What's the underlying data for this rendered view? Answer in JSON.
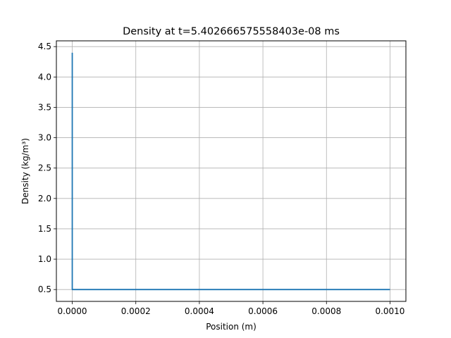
{
  "chart_data": {
    "type": "line",
    "title": "Density at t=5.402666575558403e-08 ms",
    "xlabel": "Position (m)",
    "ylabel": "Density (kg/m³)",
    "xlim": [
      -5e-05,
      0.00105
    ],
    "ylim": [
      0.305,
      4.595
    ],
    "xticks": [
      0.0,
      0.0002,
      0.0004,
      0.0006,
      0.0008,
      0.001
    ],
    "xtick_labels": [
      "0.0000",
      "0.0002",
      "0.0004",
      "0.0006",
      "0.0008",
      "0.0010"
    ],
    "yticks": [
      0.5,
      1.0,
      1.5,
      2.0,
      2.5,
      3.0,
      3.5,
      4.0,
      4.5
    ],
    "ytick_labels": [
      "0.5",
      "1.0",
      "1.5",
      "2.0",
      "2.5",
      "3.0",
      "3.5",
      "4.0",
      "4.5"
    ],
    "grid": true,
    "series": [
      {
        "color": "#1f77b4",
        "x": [
          0.0,
          0.0,
          2e-06,
          0.001
        ],
        "y": [
          4.4,
          0.5,
          0.5,
          0.5
        ]
      }
    ]
  }
}
